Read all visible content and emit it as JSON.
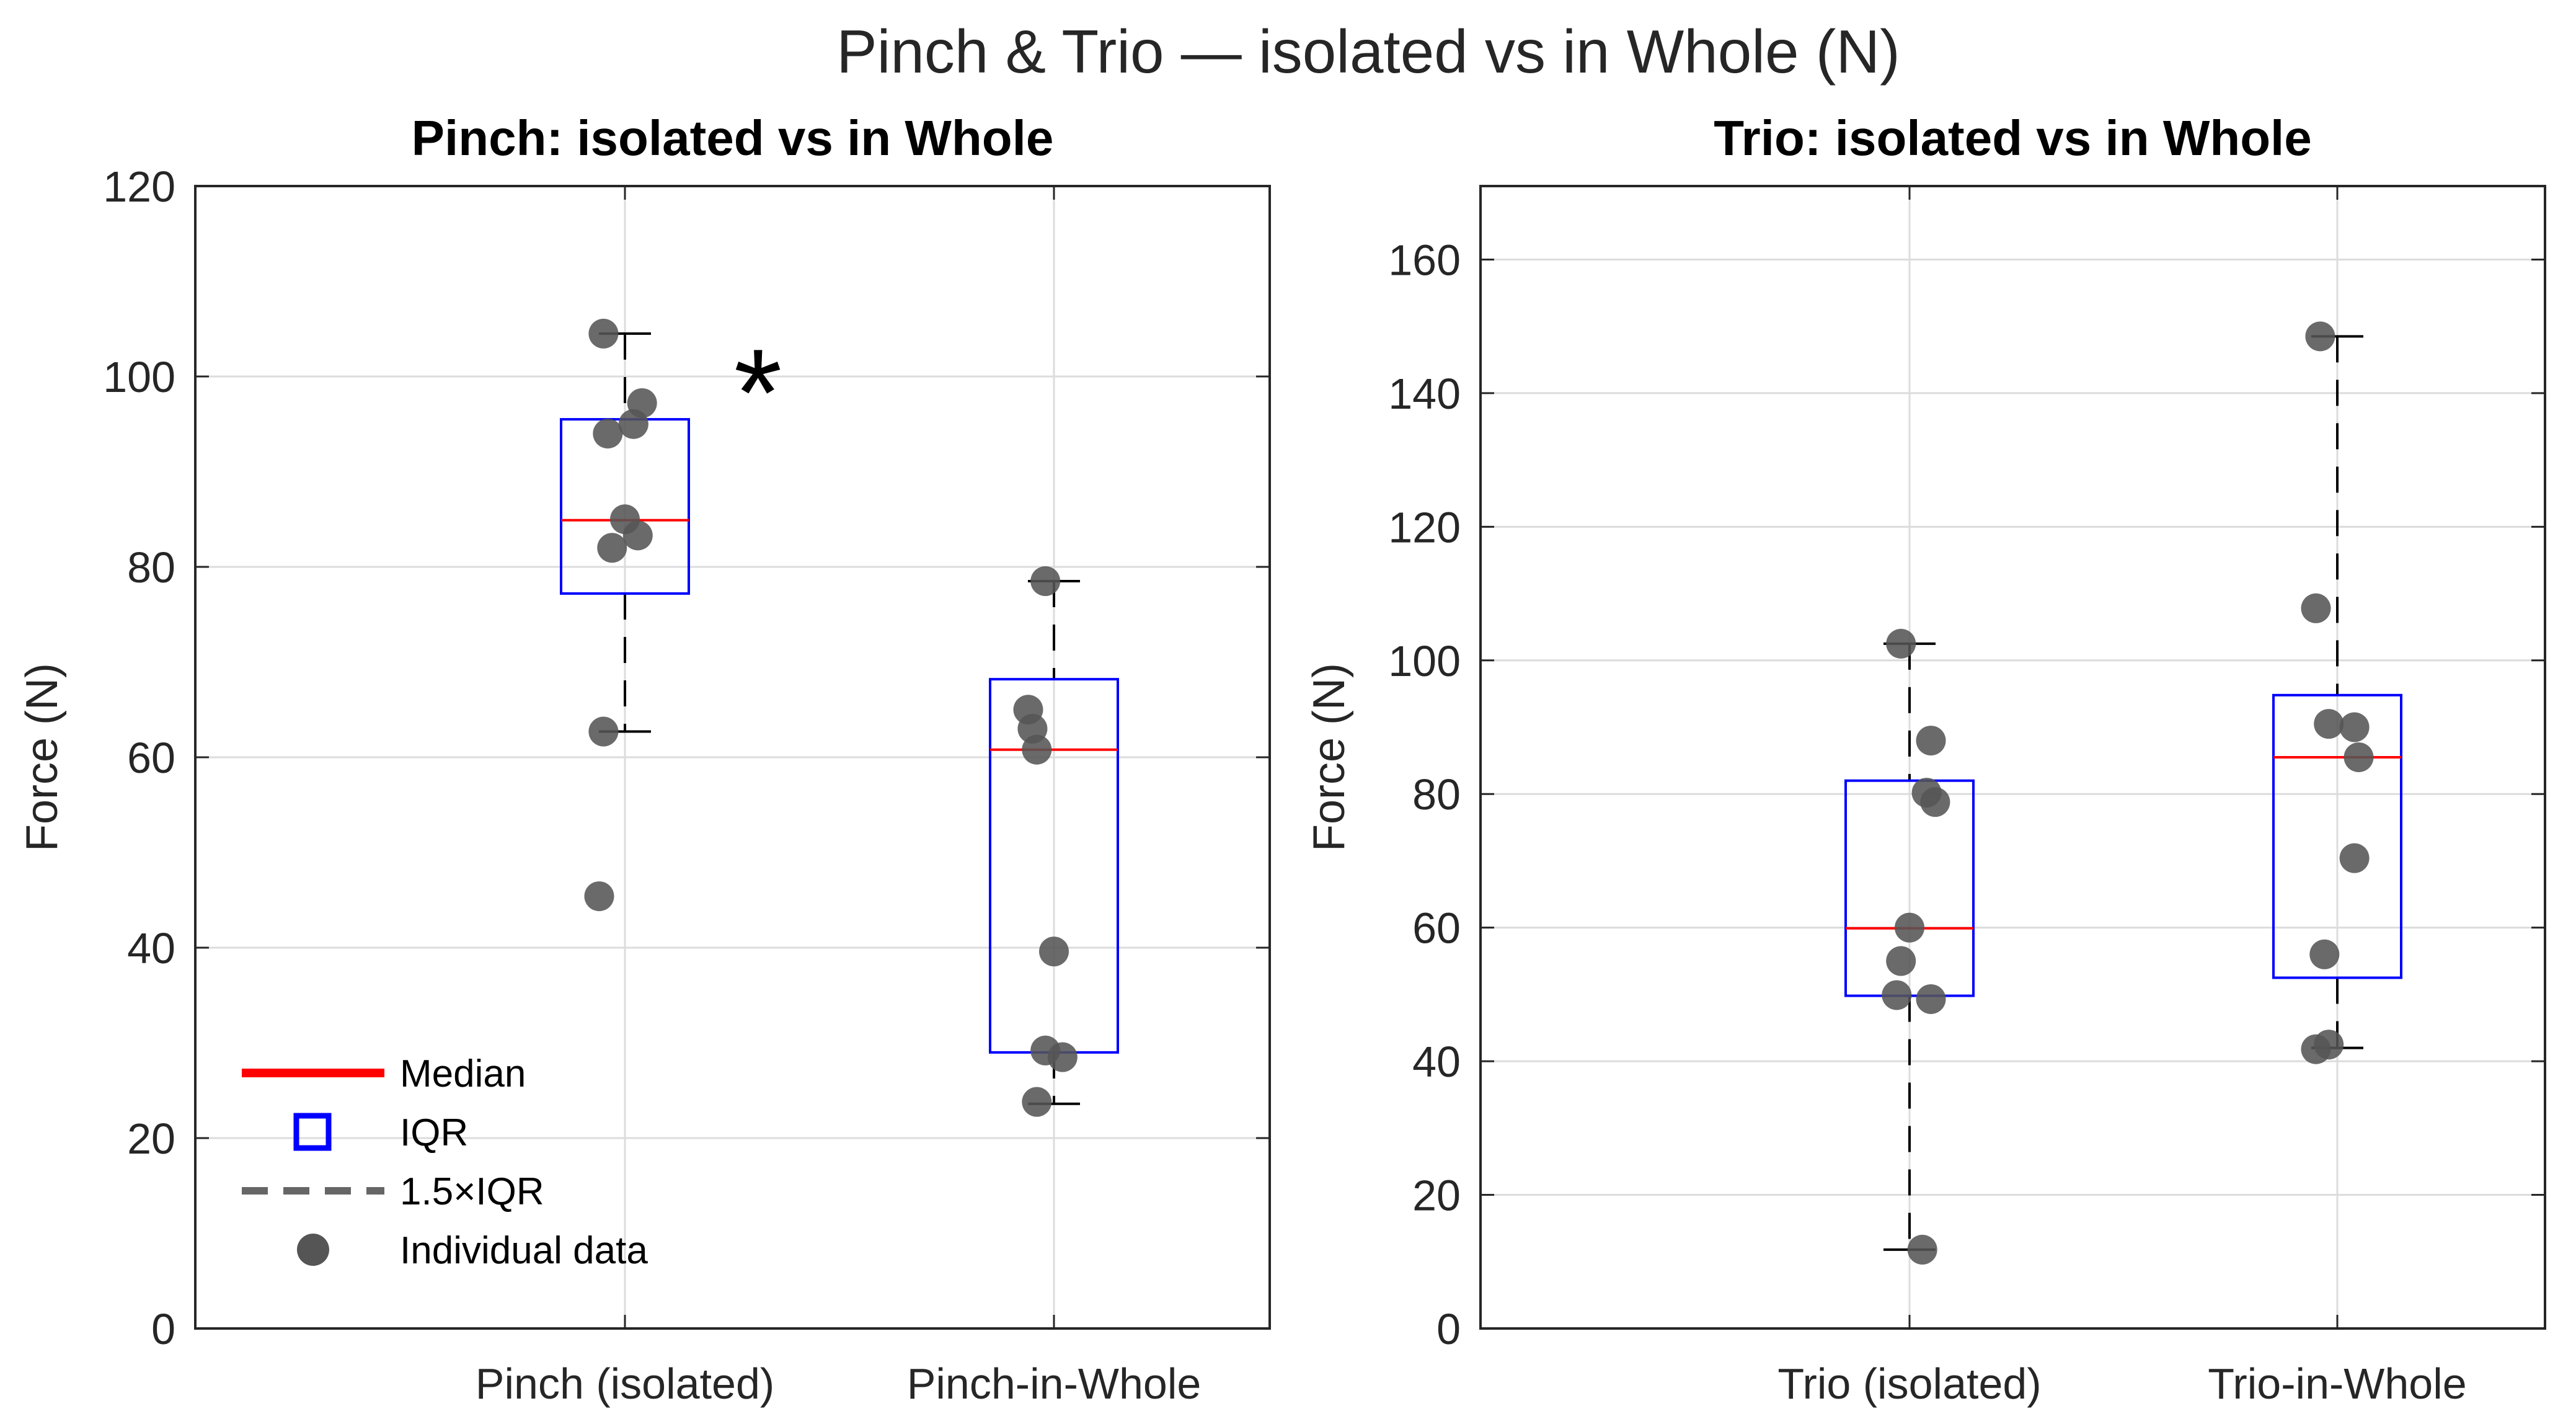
{
  "figure_title": "Pinch & Trio — isolated vs in Whole (N)",
  "legend": {
    "entries": [
      {
        "label": "Median",
        "color": "#ff0000"
      },
      {
        "label": "IQR",
        "color": "#0000ff"
      },
      {
        "label": "1.5×IQR",
        "color": "#666666"
      },
      {
        "label": "Individual data",
        "color": "#555555"
      }
    ]
  },
  "chart_data": [
    {
      "type": "box",
      "title": "Pinch: isolated vs in Whole",
      "ylabel": "Force (N)",
      "xlabel": "",
      "ylim": [
        0,
        120
      ],
      "yticks": [
        0,
        20,
        40,
        60,
        80,
        100,
        120
      ],
      "grid": true,
      "categories": [
        "Pinch (isolated)",
        "Pinch-in-Whole"
      ],
      "boxes": [
        {
          "q1": 77.2,
          "median": 84.9,
          "q3": 95.5,
          "whisker_low": 62.7,
          "whisker_high": 104.5
        },
        {
          "q1": 29.0,
          "median": 60.8,
          "q3": 68.2,
          "whisker_low": 23.6,
          "whisker_high": 78.5
        }
      ],
      "points": [
        [
          {
            "x": -0.05,
            "y": 104.5
          },
          {
            "x": 0.04,
            "y": 97.2
          },
          {
            "x": 0.02,
            "y": 95.0
          },
          {
            "x": -0.04,
            "y": 94.0
          },
          {
            "x": 0.0,
            "y": 85.0
          },
          {
            "x": 0.03,
            "y": 83.3
          },
          {
            "x": -0.03,
            "y": 82.0
          },
          {
            "x": -0.05,
            "y": 62.7
          },
          {
            "x": -0.06,
            "y": 45.4
          }
        ],
        [
          {
            "x": -0.02,
            "y": 78.5
          },
          {
            "x": -0.06,
            "y": 65.0
          },
          {
            "x": -0.05,
            "y": 63.0
          },
          {
            "x": -0.04,
            "y": 60.8
          },
          {
            "x": 0.0,
            "y": 39.6
          },
          {
            "x": -0.02,
            "y": 29.2
          },
          {
            "x": 0.02,
            "y": 28.5
          },
          {
            "x": -0.04,
            "y": 23.8
          }
        ]
      ],
      "annotations": [
        {
          "text": "*",
          "x": 0.31,
          "y": 100
        }
      ]
    },
    {
      "type": "box",
      "title": "Trio: isolated vs in Whole",
      "ylabel": "Force (N)",
      "xlabel": "",
      "ylim": [
        0,
        171
      ],
      "yticks": [
        0,
        20,
        40,
        60,
        80,
        100,
        120,
        140,
        160
      ],
      "grid": true,
      "categories": [
        "Trio (isolated)",
        "Trio-in-Whole"
      ],
      "boxes": [
        {
          "q1": 49.8,
          "median": 59.9,
          "q3": 82.0,
          "whisker_low": 11.8,
          "whisker_high": 102.5
        },
        {
          "q1": 52.5,
          "median": 85.5,
          "q3": 94.8,
          "whisker_low": 42.0,
          "whisker_high": 148.5
        }
      ],
      "points": [
        [
          {
            "x": -0.02,
            "y": 102.5
          },
          {
            "x": 0.05,
            "y": 88.0
          },
          {
            "x": 0.04,
            "y": 80.2
          },
          {
            "x": 0.06,
            "y": 78.8
          },
          {
            "x": 0.0,
            "y": 60.0
          },
          {
            "x": -0.02,
            "y": 55.0
          },
          {
            "x": -0.03,
            "y": 49.9
          },
          {
            "x": 0.05,
            "y": 49.3
          },
          {
            "x": 0.03,
            "y": 11.8
          }
        ],
        [
          {
            "x": -0.04,
            "y": 148.5
          },
          {
            "x": -0.05,
            "y": 107.8
          },
          {
            "x": -0.02,
            "y": 90.5
          },
          {
            "x": 0.04,
            "y": 90.0
          },
          {
            "x": 0.05,
            "y": 85.5
          },
          {
            "x": 0.04,
            "y": 70.4
          },
          {
            "x": -0.03,
            "y": 56.0
          },
          {
            "x": -0.05,
            "y": 41.8
          },
          {
            "x": -0.02,
            "y": 42.5
          }
        ]
      ],
      "annotations": []
    }
  ]
}
